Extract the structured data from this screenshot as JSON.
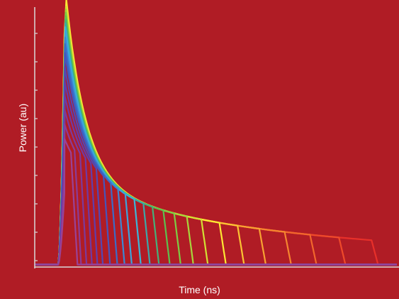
{
  "chart_data": {
    "type": "line",
    "title": "",
    "xlabel": "Time (ns)",
    "ylabel": "Power (au)",
    "grid": false,
    "legend": "none",
    "xlim": [
      0,
      1
    ],
    "ylim": [
      0,
      1
    ],
    "background": "#b01c25",
    "axis_color": "#d9d9d9",
    "y_ticks": 9,
    "pulse_rise_x": 0.065,
    "peak_x": 0.082,
    "baseline_level": 0.01,
    "series": [
      {
        "color": "#e8302a",
        "peak": 0.9,
        "cutoff_x": 0.93
      },
      {
        "color": "#ee4a2a",
        "peak": 0.9,
        "cutoff_x": 0.84
      },
      {
        "color": "#f2672c",
        "peak": 0.9,
        "cutoff_x": 0.76
      },
      {
        "color": "#f5852f",
        "peak": 0.9,
        "cutoff_x": 0.69
      },
      {
        "color": "#f8a232",
        "peak": 0.91,
        "cutoff_x": 0.62
      },
      {
        "color": "#fbc433",
        "peak": 0.92,
        "cutoff_x": 0.56
      },
      {
        "color": "#fde833",
        "peak": 0.94,
        "cutoff_x": 0.51
      },
      {
        "color": "#d2e034",
        "peak": 0.9,
        "cutoff_x": 0.46
      },
      {
        "color": "#a7d63c",
        "peak": 0.88,
        "cutoff_x": 0.42
      },
      {
        "color": "#7ccc44",
        "peak": 0.86,
        "cutoff_x": 0.385
      },
      {
        "color": "#5cc04e",
        "peak": 0.84,
        "cutoff_x": 0.355
      },
      {
        "color": "#44b07a",
        "peak": 0.82,
        "cutoff_x": 0.325
      },
      {
        "color": "#3aa8a8",
        "peak": 0.8,
        "cutoff_x": 0.3
      },
      {
        "color": "#3ab6d8",
        "peak": 0.78,
        "cutoff_x": 0.275
      },
      {
        "color": "#3aa4dc",
        "peak": 0.76,
        "cutoff_x": 0.25
      },
      {
        "color": "#3a88d4",
        "peak": 0.73,
        "cutoff_x": 0.23
      },
      {
        "color": "#3a6cc8",
        "peak": 0.7,
        "cutoff_x": 0.21
      },
      {
        "color": "#4456bc",
        "peak": 0.66,
        "cutoff_x": 0.19
      },
      {
        "color": "#5248b4",
        "peak": 0.6,
        "cutoff_x": 0.17
      },
      {
        "color": "#603eac",
        "peak": 0.54,
        "cutoff_x": 0.155
      },
      {
        "color": "#6e3aa4",
        "peak": 0.48,
        "cutoff_x": 0.14
      },
      {
        "color": "#7c3a9c",
        "peak": 0.42,
        "cutoff_x": 0.125
      },
      {
        "color": "#8a3c98",
        "peak": 0.36,
        "cutoff_x": 0.11
      },
      {
        "color": "#9a4296",
        "peak": 0.3,
        "cutoff_x": 0.1
      }
    ]
  }
}
